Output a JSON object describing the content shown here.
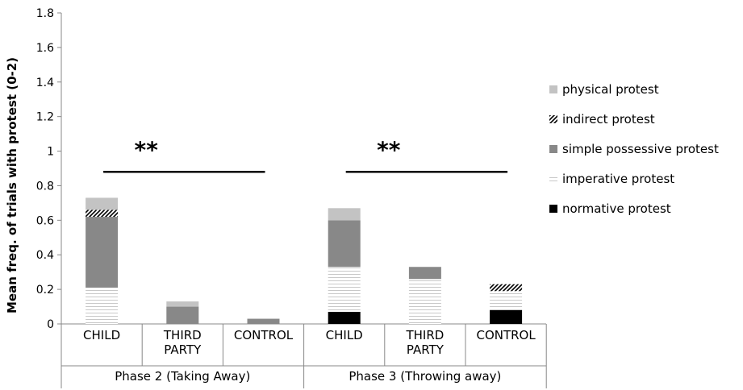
{
  "chart_data": {
    "type": "bar",
    "stacked": true,
    "ylabel": "Mean freq. of trials with protest (0-2)",
    "ylim": [
      0,
      1.8
    ],
    "yticks": [
      "0",
      "0.2",
      "0.4",
      "0.6",
      "0.8",
      "1",
      "1.2",
      "1.4",
      "1.6",
      "1.8"
    ],
    "groups": [
      {
        "label": "Phase 2 (Taking Away)",
        "categories": [
          "CHILD",
          "THIRD PARTY",
          "CONTROL"
        ]
      },
      {
        "label": "Phase 3 (Throwing away)",
        "categories": [
          "CHILD",
          "THIRD PARTY",
          "CONTROL"
        ]
      }
    ],
    "categories": [
      "CHILD",
      "THIRD PARTY",
      "CONTROL",
      "CHILD",
      "THIRD PARTY",
      "CONTROL"
    ],
    "category_lines": [
      [
        "CHILD"
      ],
      [
        "THIRD",
        "PARTY"
      ],
      [
        "CONTROL"
      ],
      [
        "CHILD"
      ],
      [
        "THIRD",
        "PARTY"
      ],
      [
        "CONTROL"
      ]
    ],
    "series": [
      {
        "name": "normative protest",
        "values": [
          0,
          0,
          0,
          0.07,
          0,
          0.08
        ],
        "style": "black"
      },
      {
        "name": "imperative protest",
        "values": [
          0.21,
          0,
          0,
          0.26,
          0.26,
          0.11
        ],
        "style": "hlines"
      },
      {
        "name": "simple possessive protest",
        "values": [
          0.41,
          0.1,
          0.03,
          0.27,
          0.07,
          0
        ],
        "style": "darkgray"
      },
      {
        "name": "indirect protest",
        "values": [
          0.04,
          0,
          0,
          0,
          0,
          0.04
        ],
        "style": "diagonal"
      },
      {
        "name": "physical protest",
        "values": [
          0.07,
          0.03,
          0,
          0.07,
          0,
          0
        ],
        "style": "lightgray"
      }
    ],
    "legend_order": [
      "physical protest",
      "indirect protest",
      "simple possessive protest",
      "imperative protest",
      "normative protest"
    ],
    "legend_position": "right",
    "significance": [
      {
        "label": "**",
        "from_category": 0,
        "to_category": 2,
        "y": 0.88
      },
      {
        "label": "**",
        "from_category": 3,
        "to_category": 5,
        "y": 0.88
      }
    ],
    "grid": false,
    "colors": {
      "black": "#000000",
      "hlines": "#ffffff",
      "hlines_stroke": "#c8c8c8",
      "darkgray": "#888888",
      "lightgray": "#c3c3c3",
      "diagonal_stroke": "#000000"
    }
  }
}
